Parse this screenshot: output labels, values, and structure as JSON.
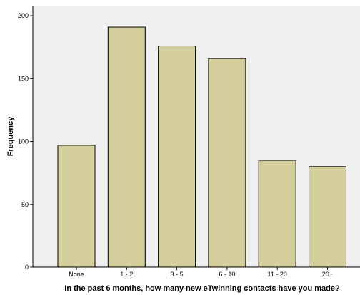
{
  "chart_data": {
    "type": "bar",
    "categories": [
      "None",
      "1 - 2",
      "3 - 5",
      "6 - 10",
      "11 - 20",
      "20+"
    ],
    "values": [
      97,
      191,
      176,
      166,
      85,
      80
    ],
    "xlabel": "In the past 6 months, how many new eTwinning contacts have you made?",
    "ylabel": "Frequency",
    "ylim": [
      0,
      208
    ],
    "yticks": [
      0,
      50,
      100,
      150,
      200
    ],
    "grid": false,
    "legend": "none",
    "colors": {
      "bar_fill": "#d3ce9a",
      "bar_stroke": "#000000",
      "plot_background": "#f0f0f0",
      "axis": "#000000"
    }
  }
}
